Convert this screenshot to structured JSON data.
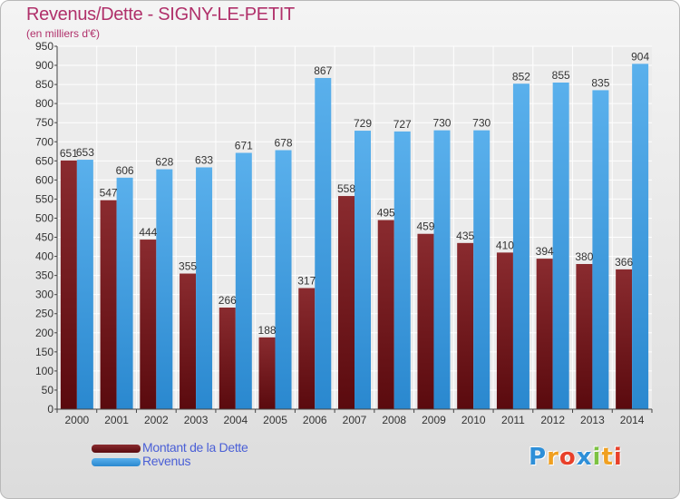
{
  "header": {
    "title": "Revenus/Dette - SIGNY-LE-PETIT",
    "subtitle": "(en milliers d'€)"
  },
  "chart_data": {
    "type": "bar",
    "title": "Revenus/Dette - SIGNY-LE-PETIT",
    "subtitle": "(en milliers d'€)",
    "categories": [
      "2000",
      "2001",
      "2002",
      "2003",
      "2004",
      "2005",
      "2006",
      "2007",
      "2008",
      "2009",
      "2010",
      "2011",
      "2012",
      "2013",
      "2014"
    ],
    "series": [
      {
        "name": "Montant de la Dette",
        "color": "#7a1f24",
        "values": [
          651,
          547,
          444,
          355,
          266,
          188,
          317,
          558,
          495,
          459,
          435,
          410,
          394,
          380,
          366
        ]
      },
      {
        "name": "Revenus",
        "color": "#3b9de0",
        "values": [
          653,
          606,
          628,
          633,
          671,
          678,
          867,
          729,
          727,
          730,
          730,
          852,
          855,
          835,
          904
        ]
      }
    ],
    "ylim": [
      0,
      950
    ],
    "yticks": [
      0,
      50,
      100,
      150,
      200,
      250,
      300,
      350,
      400,
      450,
      500,
      550,
      600,
      650,
      700,
      750,
      800,
      850,
      900,
      950
    ],
    "grid": true,
    "legend_position": "bottom-left"
  },
  "legend": {
    "items": [
      {
        "label": "Montant de la Dette",
        "color": "#7a1f24"
      },
      {
        "label": "Revenus",
        "color": "#3b9de0"
      }
    ]
  },
  "logo": {
    "text": "Proxiti",
    "letters": [
      {
        "char": "P",
        "color": "#2e8fd8"
      },
      {
        "char": "r",
        "color": "#f0a020"
      },
      {
        "char": "o",
        "color": "#e8402a"
      },
      {
        "char": "x",
        "color": "#2e8fd8"
      },
      {
        "char": "i",
        "color": "#7cc242"
      },
      {
        "char": "t",
        "color": "#f0a020"
      },
      {
        "char": "i",
        "color": "#e8402a"
      }
    ]
  }
}
